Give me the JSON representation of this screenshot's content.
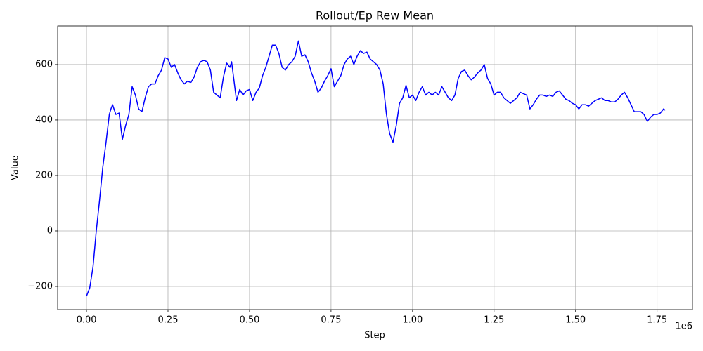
{
  "chart_data": {
    "type": "line",
    "title": "Rollout/Ep Rew Mean",
    "x_label": "Step",
    "y_label": "Value",
    "x_offset_text": "1e6",
    "color": "#0000ff",
    "grid": true,
    "xlim": [
      -88500,
      1858500
    ],
    "ylim": [
      -283.5,
      739
    ],
    "xticks": [
      {
        "value": 0,
        "label": "0.00"
      },
      {
        "value": 250000,
        "label": "0.25"
      },
      {
        "value": 500000,
        "label": "0.50"
      },
      {
        "value": 750000,
        "label": "0.75"
      },
      {
        "value": 1000000,
        "label": "1.00"
      },
      {
        "value": 1250000,
        "label": "1.25"
      },
      {
        "value": 1500000,
        "label": "1.50"
      },
      {
        "value": 1750000,
        "label": "1.75"
      }
    ],
    "yticks": [
      {
        "value": -200,
        "label": "−200"
      },
      0,
      200,
      400,
      600
    ],
    "x": [
      0,
      10000,
      20000,
      30000,
      40000,
      50000,
      60000,
      70000,
      75000,
      80000,
      90000,
      100000,
      110000,
      120000,
      130000,
      140000,
      150000,
      160000,
      170000,
      180000,
      190000,
      200000,
      210000,
      220000,
      230000,
      240000,
      250000,
      260000,
      270000,
      280000,
      290000,
      300000,
      310000,
      320000,
      330000,
      340000,
      350000,
      360000,
      370000,
      380000,
      390000,
      400000,
      410000,
      420000,
      430000,
      440000,
      445000,
      460000,
      470000,
      480000,
      490000,
      500000,
      510000,
      520000,
      530000,
      540000,
      550000,
      560000,
      570000,
      580000,
      590000,
      600000,
      610000,
      620000,
      630000,
      640000,
      650000,
      660000,
      670000,
      680000,
      690000,
      700000,
      710000,
      720000,
      730000,
      740000,
      750000,
      760000,
      770000,
      780000,
      790000,
      800000,
      810000,
      820000,
      830000,
      840000,
      850000,
      860000,
      870000,
      880000,
      890000,
      900000,
      910000,
      920000,
      930000,
      940000,
      950000,
      960000,
      970000,
      980000,
      990000,
      1000000,
      1010000,
      1020000,
      1030000,
      1040000,
      1050000,
      1060000,
      1070000,
      1080000,
      1090000,
      1100000,
      1110000,
      1120000,
      1130000,
      1140000,
      1150000,
      1160000,
      1170000,
      1180000,
      1190000,
      1200000,
      1210000,
      1220000,
      1230000,
      1240000,
      1250000,
      1260000,
      1270000,
      1280000,
      1290000,
      1300000,
      1310000,
      1320000,
      1330000,
      1340000,
      1350000,
      1360000,
      1370000,
      1380000,
      1390000,
      1400000,
      1410000,
      1420000,
      1430000,
      1440000,
      1450000,
      1460000,
      1470000,
      1480000,
      1490000,
      1500000,
      1510000,
      1520000,
      1530000,
      1540000,
      1550000,
      1560000,
      1570000,
      1580000,
      1590000,
      1600000,
      1610000,
      1620000,
      1630000,
      1640000,
      1650000,
      1660000,
      1670000,
      1680000,
      1690000,
      1700000,
      1710000,
      1720000,
      1730000,
      1740000,
      1750000,
      1760000,
      1770000,
      1775000
    ],
    "values": [
      -235,
      -205,
      -130,
      0,
      110,
      230,
      320,
      420,
      440,
      455,
      420,
      425,
      330,
      380,
      420,
      520,
      490,
      440,
      430,
      480,
      520,
      530,
      530,
      560,
      580,
      625,
      620,
      590,
      600,
      570,
      545,
      530,
      540,
      535,
      555,
      590,
      610,
      615,
      610,
      580,
      500,
      490,
      480,
      555,
      605,
      590,
      610,
      470,
      510,
      490,
      505,
      510,
      470,
      500,
      515,
      560,
      590,
      630,
      670,
      670,
      640,
      590,
      580,
      600,
      610,
      630,
      685,
      630,
      635,
      610,
      570,
      540,
      500,
      515,
      540,
      560,
      585,
      520,
      540,
      560,
      600,
      620,
      630,
      600,
      630,
      650,
      640,
      645,
      620,
      610,
      600,
      580,
      530,
      420,
      350,
      320,
      380,
      460,
      480,
      525,
      480,
      490,
      470,
      500,
      520,
      490,
      500,
      490,
      500,
      490,
      520,
      500,
      480,
      470,
      490,
      550,
      575,
      580,
      560,
      545,
      555,
      570,
      580,
      600,
      550,
      530,
      490,
      500,
      500,
      480,
      470,
      460,
      470,
      480,
      500,
      495,
      490,
      440,
      455,
      475,
      490,
      490,
      485,
      490,
      485,
      500,
      505,
      490,
      475,
      470,
      460,
      455,
      440,
      455,
      455,
      450,
      460,
      470,
      475,
      480,
      470,
      470,
      465,
      465,
      475,
      490,
      500,
      480,
      455,
      430,
      430,
      430,
      420,
      395,
      410,
      420,
      420,
      425,
      440,
      435
    ]
  }
}
